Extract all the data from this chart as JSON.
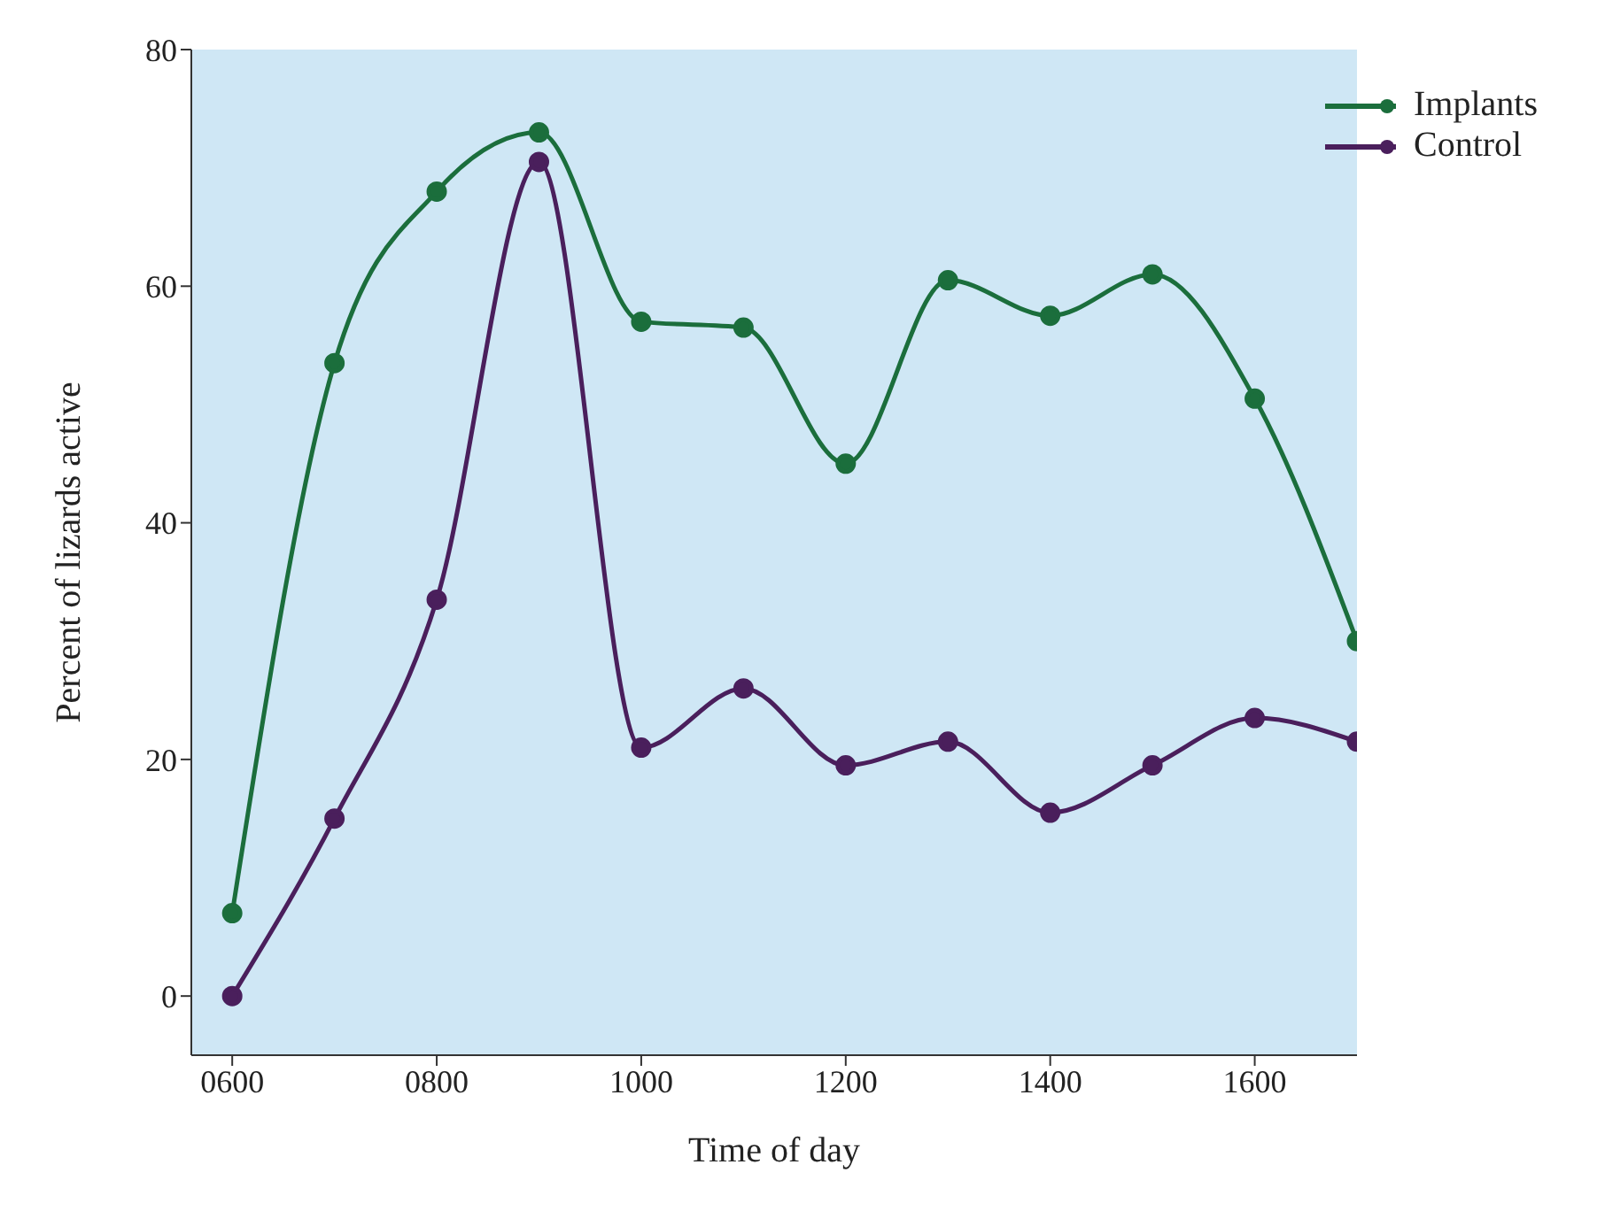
{
  "chart_data": {
    "type": "line",
    "xlabel": "Time of day",
    "ylabel": "Percent of lizards active",
    "x": [
      600,
      700,
      800,
      900,
      1000,
      1100,
      1200,
      1300,
      1400,
      1500,
      1600,
      1700
    ],
    "series": [
      {
        "name": "Implants",
        "color": "#1b6e3c",
        "values": [
          7,
          53.5,
          68,
          73,
          57,
          56.5,
          45,
          60.5,
          57.5,
          61,
          50.5,
          30
        ]
      },
      {
        "name": "Control",
        "color": "#4a1f5c",
        "values": [
          0,
          15,
          33.5,
          70.5,
          21,
          26,
          19.5,
          21.5,
          15.5,
          19.5,
          23.5,
          21.5
        ]
      }
    ],
    "xlim": [
      560,
      1700
    ],
    "xticks": [
      {
        "value": 600,
        "label": "0600"
      },
      {
        "value": 800,
        "label": "0800"
      },
      {
        "value": 1000,
        "label": "1000"
      },
      {
        "value": 1200,
        "label": "1200"
      },
      {
        "value": 1400,
        "label": "1400"
      },
      {
        "value": 1600,
        "label": "1600"
      }
    ],
    "ylim": [
      -5,
      80
    ],
    "yticks": [
      0,
      20,
      40,
      60,
      80
    ],
    "marker": "circle",
    "legend": "top right"
  }
}
